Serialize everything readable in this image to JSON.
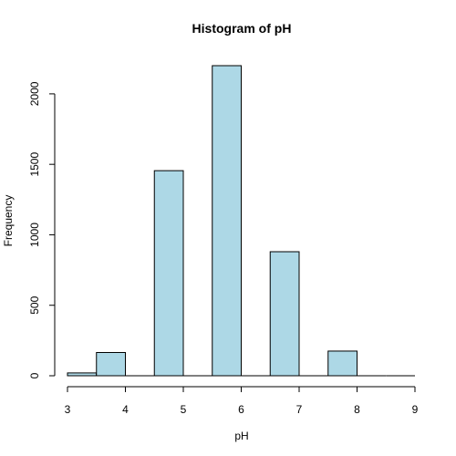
{
  "chart_data": {
    "type": "bar",
    "title": "Histogram of pH",
    "xlabel": "pH",
    "ylabel": "Frequency",
    "bin_width": 0.5,
    "bins": [
      {
        "x0": 3.0,
        "x1": 3.5,
        "count": 20
      },
      {
        "x0": 3.5,
        "x1": 4.0,
        "count": 165
      },
      {
        "x0": 4.0,
        "x1": 4.5,
        "count": 0
      },
      {
        "x0": 4.5,
        "x1": 5.0,
        "count": 1455
      },
      {
        "x0": 5.0,
        "x1": 5.5,
        "count": 0
      },
      {
        "x0": 5.5,
        "x1": 6.0,
        "count": 2200
      },
      {
        "x0": 6.0,
        "x1": 6.5,
        "count": 0
      },
      {
        "x0": 6.5,
        "x1": 7.0,
        "count": 880
      },
      {
        "x0": 7.0,
        "x1": 7.5,
        "count": 0
      },
      {
        "x0": 7.5,
        "x1": 8.0,
        "count": 175
      },
      {
        "x0": 8.0,
        "x1": 8.5,
        "count": 0
      },
      {
        "x0": 8.5,
        "x1": 9.0,
        "count": 0
      }
    ],
    "xlim": [
      3,
      9
    ],
    "ylim": [
      0,
      2200
    ],
    "x_ticks": [
      "3",
      "4",
      "5",
      "6",
      "7",
      "8",
      "9"
    ],
    "y_ticks": [
      "0",
      "500",
      "1000",
      "1500",
      "2000"
    ],
    "bar_color": "#add8e6",
    "grid": false
  }
}
